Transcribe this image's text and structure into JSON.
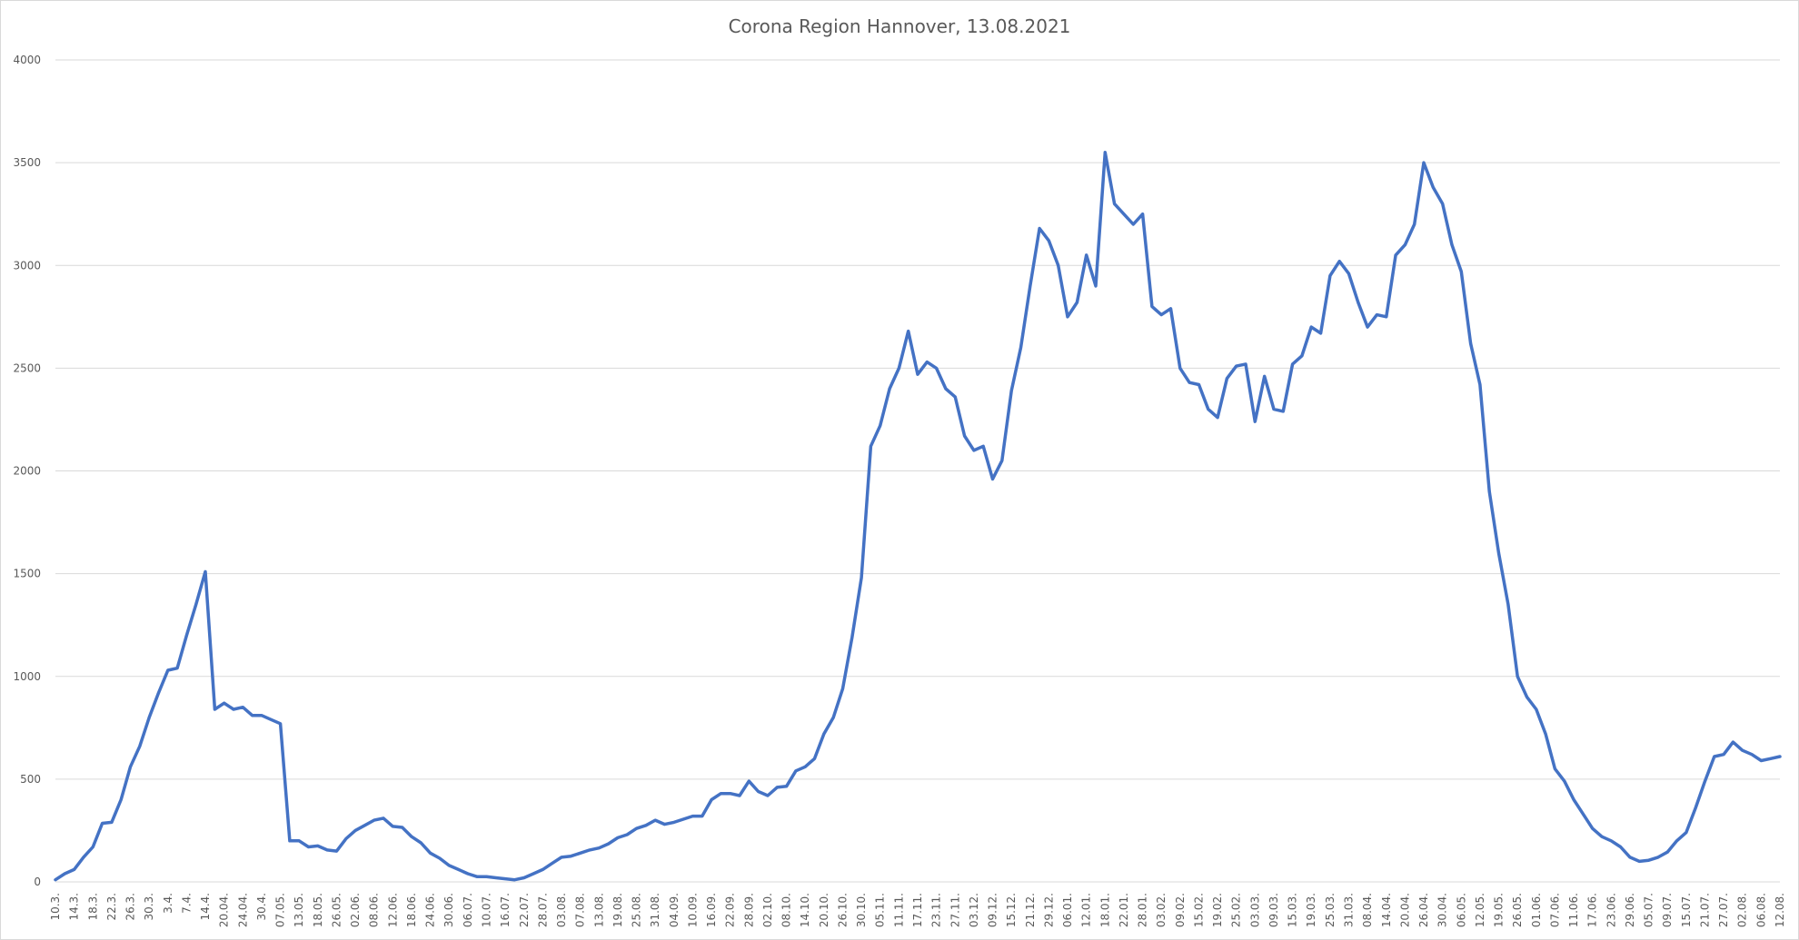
{
  "chart_data": {
    "type": "line",
    "title": "Corona Region Hannover, 13.08.2021",
    "categories": [
      "10.3.",
      null,
      "14.3.",
      null,
      "18.3.",
      null,
      "22.3.",
      null,
      "26.3.",
      null,
      "30.3.",
      null,
      "3.4.",
      null,
      "7.4.",
      null,
      "14.4.",
      null,
      "20.04.",
      null,
      "24.04.",
      null,
      "30.4.",
      null,
      "07.05.",
      null,
      "13.05.",
      null,
      "18.05.",
      null,
      "26.05.",
      null,
      "02.06.",
      null,
      "08.06.",
      null,
      "12.06.",
      null,
      "18.06.",
      null,
      "24.06.",
      null,
      "30.06.",
      null,
      "06.07.",
      null,
      "10.07.",
      null,
      "16.07.",
      null,
      "22.07.",
      null,
      "28.07.",
      null,
      "03.08.",
      null,
      "07.08.",
      null,
      "13.08.",
      null,
      "19.08.",
      null,
      "25.08.",
      null,
      "31.08.",
      null,
      "04.09.",
      null,
      "10.09.",
      null,
      "16.09.",
      null,
      "22.09.",
      null,
      "28.09.",
      null,
      "02.10.",
      null,
      "08.10.",
      null,
      "14.10.",
      null,
      "20.10.",
      null,
      "26.10.",
      null,
      "30.10.",
      null,
      "05.11.",
      null,
      "11.11.",
      null,
      "17.11.",
      null,
      "23.11.",
      null,
      "27.11.",
      null,
      "03.12.",
      null,
      "09.12.",
      null,
      "15.12.",
      null,
      "21.12.",
      null,
      "29.12.",
      null,
      "06.01.",
      null,
      "12.01.",
      null,
      "18.01.",
      null,
      "22.01.",
      null,
      "28.01.",
      null,
      "03.02.",
      null,
      "09.02.",
      null,
      "15.02.",
      null,
      "19.02.",
      null,
      "25.02.",
      null,
      "03.03.",
      null,
      "09.03.",
      null,
      "15.03.",
      null,
      "19.03.",
      null,
      "25.03.",
      null,
      "31.03.",
      null,
      "08.04.",
      null,
      "14.04.",
      null,
      "20.04.",
      null,
      "26.04.",
      null,
      "30.04.",
      null,
      "06.05.",
      null,
      "12.05.",
      null,
      "19.05.",
      null,
      "26.05.",
      null,
      "01.06.",
      null,
      "07.06.",
      null,
      "11.06.",
      null,
      "17.06.",
      null,
      "23.06.",
      null,
      "29.06.",
      null,
      "05.07.",
      null,
      "09.07.",
      null,
      "15.07.",
      null,
      "21.07.",
      null,
      "27.07.",
      null,
      "02.08.",
      null,
      "06.08.",
      null,
      "12.08."
    ],
    "series": [
      {
        "color": "#4472c4",
        "values": [
          10,
          40,
          60,
          120,
          170,
          285,
          290,
          400,
          560,
          660,
          800,
          920,
          1030,
          1040,
          1200,
          1350,
          1510,
          840,
          870,
          840,
          850,
          810,
          810,
          790,
          770,
          200,
          200,
          170,
          175,
          155,
          150,
          210,
          250,
          275,
          300,
          310,
          270,
          265,
          220,
          190,
          140,
          115,
          80,
          60,
          40,
          25,
          25,
          20,
          15,
          10,
          20,
          40,
          60,
          90,
          120,
          125,
          140,
          155,
          165,
          185,
          215,
          230,
          260,
          275,
          300,
          280,
          290,
          305,
          320,
          320,
          400,
          430,
          430,
          420,
          490,
          440,
          420,
          460,
          465,
          540,
          560,
          600,
          720,
          800,
          940,
          1190,
          1480,
          2120,
          2220,
          2400,
          2500,
          2680,
          2470,
          2530,
          2500,
          2400,
          2360,
          2170,
          2100,
          2120,
          1960,
          2050,
          2390,
          2600,
          2900,
          3180,
          3120,
          3000,
          2750,
          2820,
          3050,
          2900,
          3550,
          3300,
          3250,
          3200,
          3250,
          2800,
          2760,
          2790,
          2500,
          2430,
          2420,
          2300,
          2260,
          2450,
          2510,
          2520,
          2240,
          2460,
          2300,
          2290,
          2520,
          2560,
          2700,
          2670,
          2950,
          3020,
          2960,
          2820,
          2700,
          2760,
          2750,
          3050,
          3100,
          3200,
          3500,
          3380,
          3300,
          3100,
          2970,
          2620,
          2420,
          1900,
          1600,
          1350,
          1000,
          900,
          840,
          720,
          550,
          490,
          400,
          330,
          260,
          220,
          200,
          170,
          120,
          100,
          105,
          120,
          145,
          200,
          240,
          360,
          490,
          610,
          620,
          680,
          640,
          620,
          590,
          600,
          610
        ]
      }
    ],
    "ylim": [
      0,
      4000
    ],
    "yticks": [
      0,
      500,
      1000,
      1500,
      2000,
      2500,
      3000,
      3500,
      4000
    ],
    "grid": true
  }
}
